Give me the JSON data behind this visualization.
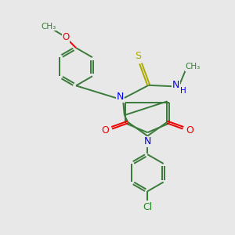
{
  "background_color": "#e8e8e8",
  "bond_color": "#3a7a3a",
  "n_color": "#0000ee",
  "o_color": "#ee0000",
  "s_color": "#aaaa00",
  "cl_color": "#228822",
  "figsize": [
    3.0,
    3.0
  ],
  "dpi": 100,
  "xlim": [
    0,
    10
  ],
  "ylim": [
    0,
    10
  ]
}
